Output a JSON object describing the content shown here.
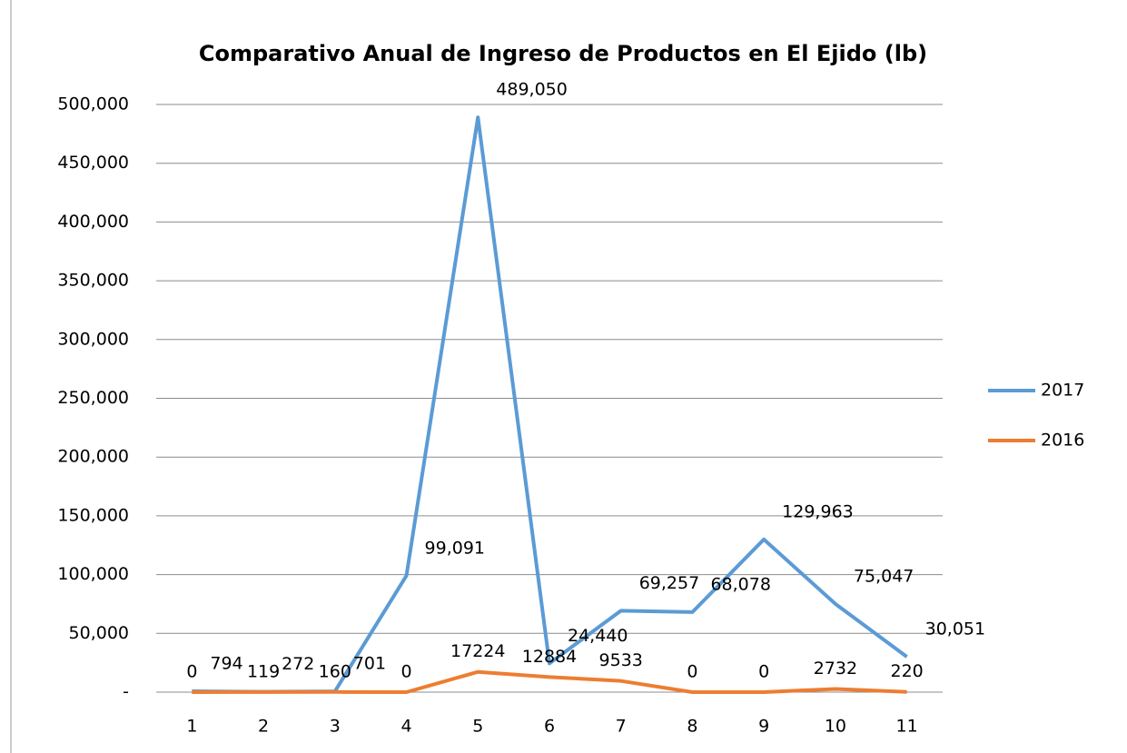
{
  "chart_data": {
    "type": "line",
    "title": "Comparativo Anual de Ingreso de Productos en El Ejido (lb)",
    "categories": [
      "1",
      "2",
      "3",
      "4",
      "5",
      "6",
      "7",
      "8",
      "9",
      "10",
      "11"
    ],
    "series": [
      {
        "name": "2017",
        "color": "#5b9bd5",
        "values": [
          794,
          272,
          701,
          99091,
          489050,
          24440,
          69257,
          68078,
          129963,
          75047,
          30051
        ],
        "value_labels": [
          "794",
          "272",
          "701",
          "99,091",
          "489,050",
          "24,440",
          "69,257",
          "68,078",
          "129,963",
          "75,047",
          "30,051"
        ]
      },
      {
        "name": "2016",
        "color": "#ed7d31",
        "values": [
          0,
          119,
          160,
          0,
          17224,
          12884,
          9533,
          0,
          0,
          2732,
          220
        ]
      }
    ],
    "ylim": [
      0,
      500000
    ],
    "yticks": [
      {
        "value": 0,
        "label": "-"
      },
      {
        "value": 50000,
        "label": "50,000"
      },
      {
        "value": 100000,
        "label": "100,000"
      },
      {
        "value": 150000,
        "label": "150,000"
      },
      {
        "value": 200000,
        "label": "200,000"
      },
      {
        "value": 250000,
        "label": "250,000"
      },
      {
        "value": 300000,
        "label": "300,000"
      },
      {
        "value": 350000,
        "label": "350,000"
      },
      {
        "value": 400000,
        "label": "400,000"
      },
      {
        "value": 450000,
        "label": "450,000"
      },
      {
        "value": 500000,
        "label": "500,000"
      }
    ],
    "grid": true,
    "legend": "right"
  }
}
